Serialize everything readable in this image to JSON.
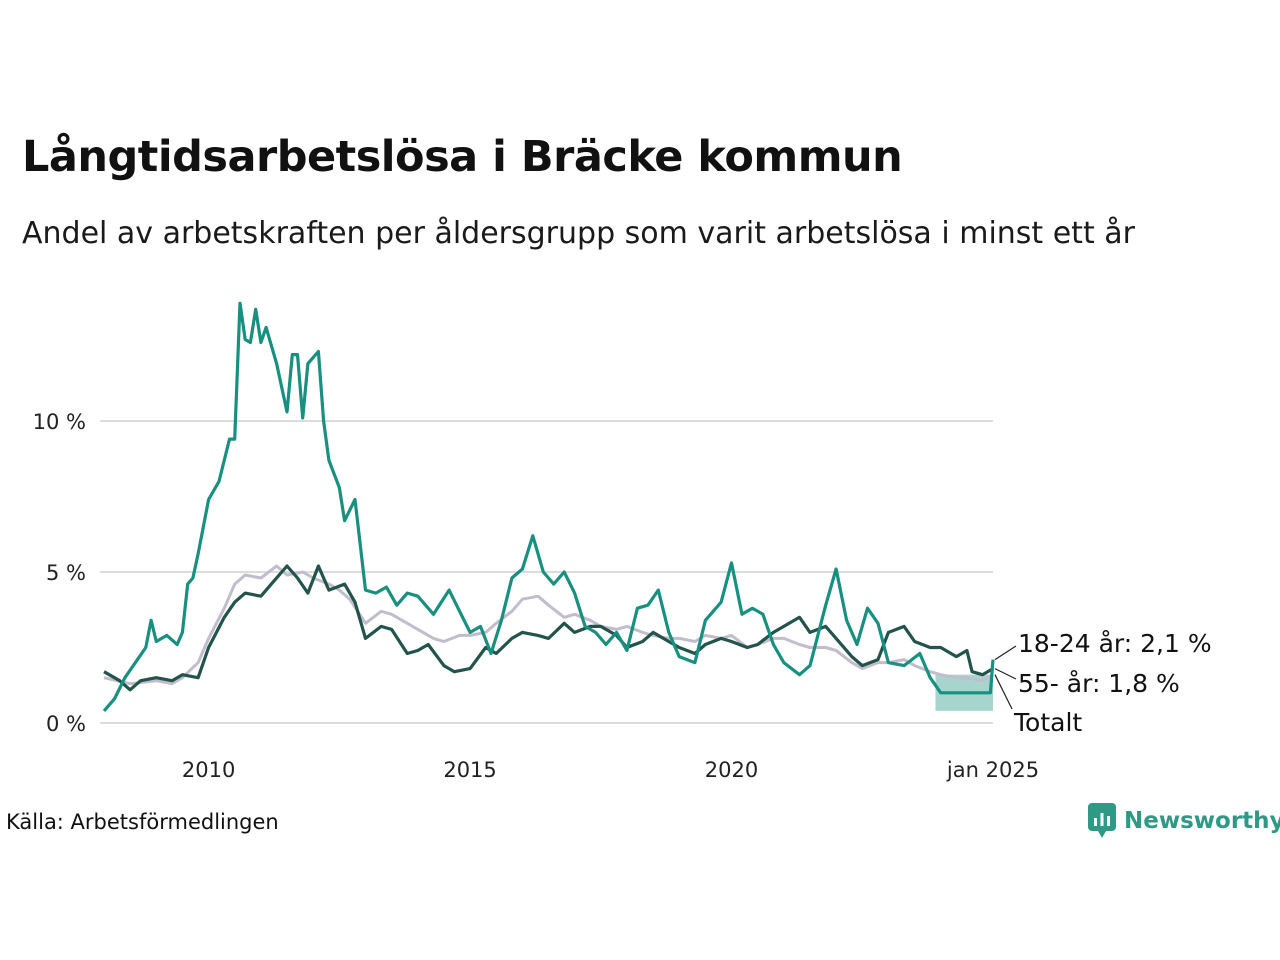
{
  "title": "Långtidsarbetslösa i Bräcke kommun",
  "subtitle": "Andel av arbetskraften per åldersgrupp som varit arbetslösa i minst ett år",
  "source": "Källa: Arbetsförmedlingen",
  "logo": {
    "text": "Newsworthy",
    "icon": "newsworthy-logo-icon",
    "color": "#2e9a86"
  },
  "chart_data": {
    "type": "line",
    "x_start": "2008-01",
    "x_end": "2025-01",
    "y_ticks": [
      {
        "value": 0,
        "label": "0 %"
      },
      {
        "value": 5,
        "label": "5 %"
      },
      {
        "value": 10,
        "label": "10 %"
      }
    ],
    "x_ticks": [
      {
        "value": "2010-01",
        "label": "2010"
      },
      {
        "value": "2015-01",
        "label": "2015"
      },
      {
        "value": "2020-01",
        "label": "2020"
      },
      {
        "value": "2025-01",
        "label": "jan 2025"
      }
    ],
    "ylim": [
      0,
      14
    ],
    "grid": "horizontal",
    "series": [
      {
        "name": "Totalt",
        "label": "Totalt",
        "color": "#c2bdcc",
        "values": [
          [
            2008.0,
            1.5
          ],
          [
            2008.5,
            1.3
          ],
          [
            2009.0,
            1.4
          ],
          [
            2009.3,
            1.3
          ],
          [
            2009.5,
            1.5
          ],
          [
            2009.8,
            2.0
          ],
          [
            2010.0,
            2.8
          ],
          [
            2010.3,
            3.8
          ],
          [
            2010.5,
            4.6
          ],
          [
            2010.7,
            4.9
          ],
          [
            2011.0,
            4.8
          ],
          [
            2011.3,
            5.2
          ],
          [
            2011.5,
            4.9
          ],
          [
            2011.8,
            5.0
          ],
          [
            2012.0,
            4.8
          ],
          [
            2012.3,
            4.6
          ],
          [
            2012.5,
            4.4
          ],
          [
            2012.7,
            4.1
          ],
          [
            2013.0,
            3.3
          ],
          [
            2013.3,
            3.7
          ],
          [
            2013.5,
            3.6
          ],
          [
            2013.8,
            3.3
          ],
          [
            2014.0,
            3.1
          ],
          [
            2014.3,
            2.8
          ],
          [
            2014.5,
            2.7
          ],
          [
            2014.8,
            2.9
          ],
          [
            2015.0,
            2.9
          ],
          [
            2015.3,
            3.0
          ],
          [
            2015.5,
            3.3
          ],
          [
            2015.8,
            3.7
          ],
          [
            2016.0,
            4.1
          ],
          [
            2016.3,
            4.2
          ],
          [
            2016.5,
            3.9
          ],
          [
            2016.8,
            3.5
          ],
          [
            2017.0,
            3.6
          ],
          [
            2017.3,
            3.4
          ],
          [
            2017.5,
            3.2
          ],
          [
            2017.8,
            3.1
          ],
          [
            2018.0,
            3.2
          ],
          [
            2018.3,
            3.0
          ],
          [
            2018.5,
            2.9
          ],
          [
            2018.8,
            2.8
          ],
          [
            2019.0,
            2.8
          ],
          [
            2019.3,
            2.7
          ],
          [
            2019.5,
            2.9
          ],
          [
            2019.8,
            2.8
          ],
          [
            2020.0,
            2.9
          ],
          [
            2020.3,
            2.5
          ],
          [
            2020.5,
            2.6
          ],
          [
            2020.8,
            2.8
          ],
          [
            2021.0,
            2.8
          ],
          [
            2021.3,
            2.6
          ],
          [
            2021.5,
            2.5
          ],
          [
            2021.8,
            2.5
          ],
          [
            2022.0,
            2.4
          ],
          [
            2022.3,
            2.0
          ],
          [
            2022.5,
            1.8
          ],
          [
            2022.8,
            2.0
          ],
          [
            2023.0,
            2.0
          ],
          [
            2023.3,
            2.1
          ],
          [
            2023.5,
            1.9
          ],
          [
            2023.8,
            1.7
          ],
          [
            2024.0,
            1.6
          ],
          [
            2024.3,
            1.5
          ],
          [
            2024.5,
            1.5
          ],
          [
            2024.8,
            1.4
          ],
          [
            2025.0,
            1.6
          ]
        ],
        "confidence_band": null
      },
      {
        "name": "55- år",
        "label": "55- år: 1,8 %",
        "color": "#22544c",
        "values": [
          [
            2008.0,
            1.7
          ],
          [
            2008.3,
            1.4
          ],
          [
            2008.5,
            1.1
          ],
          [
            2008.7,
            1.4
          ],
          [
            2009.0,
            1.5
          ],
          [
            2009.3,
            1.4
          ],
          [
            2009.5,
            1.6
          ],
          [
            2009.8,
            1.5
          ],
          [
            2010.0,
            2.5
          ],
          [
            2010.3,
            3.5
          ],
          [
            2010.5,
            4.0
          ],
          [
            2010.7,
            4.3
          ],
          [
            2011.0,
            4.2
          ],
          [
            2011.2,
            4.6
          ],
          [
            2011.5,
            5.2
          ],
          [
            2011.7,
            4.8
          ],
          [
            2011.9,
            4.3
          ],
          [
            2012.1,
            5.2
          ],
          [
            2012.3,
            4.4
          ],
          [
            2012.6,
            4.6
          ],
          [
            2012.8,
            4.0
          ],
          [
            2013.0,
            2.8
          ],
          [
            2013.3,
            3.2
          ],
          [
            2013.5,
            3.1
          ],
          [
            2013.8,
            2.3
          ],
          [
            2014.0,
            2.4
          ],
          [
            2014.2,
            2.6
          ],
          [
            2014.5,
            1.9
          ],
          [
            2014.7,
            1.7
          ],
          [
            2015.0,
            1.8
          ],
          [
            2015.3,
            2.5
          ],
          [
            2015.5,
            2.3
          ],
          [
            2015.8,
            2.8
          ],
          [
            2016.0,
            3.0
          ],
          [
            2016.3,
            2.9
          ],
          [
            2016.5,
            2.8
          ],
          [
            2016.8,
            3.3
          ],
          [
            2017.0,
            3.0
          ],
          [
            2017.3,
            3.2
          ],
          [
            2017.5,
            3.2
          ],
          [
            2017.8,
            2.9
          ],
          [
            2018.0,
            2.5
          ],
          [
            2018.3,
            2.7
          ],
          [
            2018.5,
            3.0
          ],
          [
            2018.8,
            2.7
          ],
          [
            2019.0,
            2.5
          ],
          [
            2019.3,
            2.3
          ],
          [
            2019.5,
            2.6
          ],
          [
            2019.8,
            2.8
          ],
          [
            2020.0,
            2.7
          ],
          [
            2020.3,
            2.5
          ],
          [
            2020.5,
            2.6
          ],
          [
            2020.8,
            3.0
          ],
          [
            2021.0,
            3.2
          ],
          [
            2021.3,
            3.5
          ],
          [
            2021.5,
            3.0
          ],
          [
            2021.8,
            3.2
          ],
          [
            2022.0,
            2.8
          ],
          [
            2022.3,
            2.2
          ],
          [
            2022.5,
            1.9
          ],
          [
            2022.8,
            2.1
          ],
          [
            2023.0,
            3.0
          ],
          [
            2023.3,
            3.2
          ],
          [
            2023.5,
            2.7
          ],
          [
            2023.8,
            2.5
          ],
          [
            2024.0,
            2.5
          ],
          [
            2024.3,
            2.2
          ],
          [
            2024.5,
            2.4
          ],
          [
            2024.6,
            1.7
          ],
          [
            2024.8,
            1.6
          ],
          [
            2025.0,
            1.8
          ]
        ],
        "confidence_band": null
      },
      {
        "name": "18-24 år",
        "label": "18-24 år: 2,1 %",
        "color": "#18907f",
        "values": [
          [
            2008.0,
            0.4
          ],
          [
            2008.2,
            0.8
          ],
          [
            2008.4,
            1.5
          ],
          [
            2008.6,
            2.0
          ],
          [
            2008.8,
            2.5
          ],
          [
            2008.9,
            3.4
          ],
          [
            2009.0,
            2.7
          ],
          [
            2009.2,
            2.9
          ],
          [
            2009.4,
            2.6
          ],
          [
            2009.5,
            3.0
          ],
          [
            2009.6,
            4.6
          ],
          [
            2009.7,
            4.8
          ],
          [
            2009.8,
            5.6
          ],
          [
            2010.0,
            7.4
          ],
          [
            2010.2,
            8.0
          ],
          [
            2010.4,
            9.4
          ],
          [
            2010.5,
            9.4
          ],
          [
            2010.6,
            13.9
          ],
          [
            2010.7,
            12.7
          ],
          [
            2010.8,
            12.6
          ],
          [
            2010.9,
            13.7
          ],
          [
            2011.0,
            12.6
          ],
          [
            2011.1,
            13.1
          ],
          [
            2011.3,
            11.9
          ],
          [
            2011.5,
            10.3
          ],
          [
            2011.6,
            12.2
          ],
          [
            2011.7,
            12.2
          ],
          [
            2011.8,
            10.1
          ],
          [
            2011.9,
            11.9
          ],
          [
            2012.1,
            12.3
          ],
          [
            2012.2,
            10.0
          ],
          [
            2012.3,
            8.7
          ],
          [
            2012.5,
            7.8
          ],
          [
            2012.6,
            6.7
          ],
          [
            2012.8,
            7.4
          ],
          [
            2013.0,
            4.4
          ],
          [
            2013.2,
            4.3
          ],
          [
            2013.4,
            4.5
          ],
          [
            2013.6,
            3.9
          ],
          [
            2013.8,
            4.3
          ],
          [
            2014.0,
            4.2
          ],
          [
            2014.3,
            3.6
          ],
          [
            2014.6,
            4.4
          ],
          [
            2014.8,
            3.7
          ],
          [
            2015.0,
            3.0
          ],
          [
            2015.2,
            3.2
          ],
          [
            2015.4,
            2.3
          ],
          [
            2015.6,
            3.4
          ],
          [
            2015.8,
            4.8
          ],
          [
            2016.0,
            5.1
          ],
          [
            2016.2,
            6.2
          ],
          [
            2016.4,
            5.0
          ],
          [
            2016.6,
            4.6
          ],
          [
            2016.8,
            5.0
          ],
          [
            2017.0,
            4.3
          ],
          [
            2017.2,
            3.2
          ],
          [
            2017.4,
            3.0
          ],
          [
            2017.6,
            2.6
          ],
          [
            2017.8,
            3.0
          ],
          [
            2018.0,
            2.4
          ],
          [
            2018.2,
            3.8
          ],
          [
            2018.4,
            3.9
          ],
          [
            2018.6,
            4.4
          ],
          [
            2018.8,
            3.0
          ],
          [
            2019.0,
            2.2
          ],
          [
            2019.3,
            2.0
          ],
          [
            2019.5,
            3.4
          ],
          [
            2019.8,
            4.0
          ],
          [
            2020.0,
            5.3
          ],
          [
            2020.2,
            3.6
          ],
          [
            2020.4,
            3.8
          ],
          [
            2020.6,
            3.6
          ],
          [
            2020.8,
            2.6
          ],
          [
            2021.0,
            2.0
          ],
          [
            2021.3,
            1.6
          ],
          [
            2021.5,
            1.9
          ],
          [
            2021.8,
            3.9
          ],
          [
            2022.0,
            5.1
          ],
          [
            2022.2,
            3.4
          ],
          [
            2022.4,
            2.6
          ],
          [
            2022.6,
            3.8
          ],
          [
            2022.8,
            3.3
          ],
          [
            2023.0,
            2.0
          ],
          [
            2023.3,
            1.9
          ],
          [
            2023.6,
            2.3
          ],
          [
            2023.8,
            1.5
          ],
          [
            2024.0,
            1.0
          ],
          [
            2024.2,
            1.0
          ],
          [
            2024.5,
            1.0
          ],
          [
            2024.8,
            1.0
          ],
          [
            2024.95,
            1.0
          ],
          [
            2025.0,
            2.1
          ]
        ],
        "confidence_band": {
          "x": [
            2023.9,
            2025.0
          ],
          "low": 0.4,
          "high": 1.6
        }
      }
    ]
  }
}
